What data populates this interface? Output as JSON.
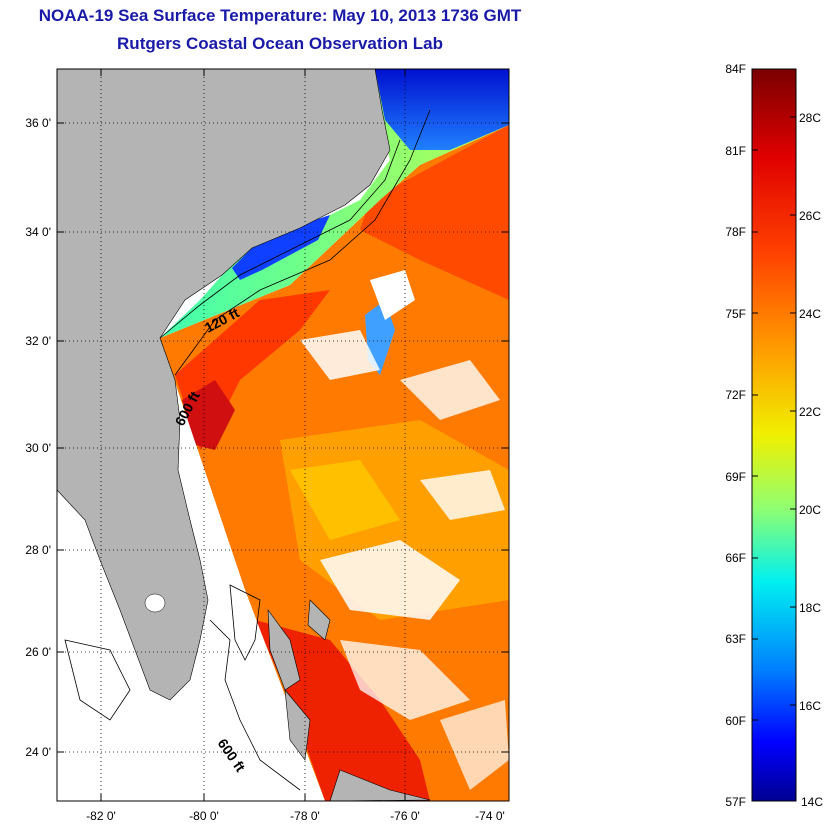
{
  "title": "NOAA-19 Sea Surface Temperature:  May 10, 2013 1736 GMT",
  "subtitle": "Rutgers Coastal Ocean Observation Lab",
  "map": {
    "lon_ticks": [
      "-82 0'",
      "-80 0'",
      "-78 0'",
      "-76 0'",
      "-74 0'"
    ],
    "lat_ticks": [
      "36 0'",
      "34 0'",
      "32 0'",
      "30 0'",
      "28 0'",
      "26 0'",
      "24 0'"
    ],
    "contour_labels": [
      "120 ft",
      "600 ft",
      "600 ft"
    ],
    "colors": {
      "land": "#b4b4b4",
      "no_data": "#ffffff"
    }
  },
  "colorbar": {
    "fahrenheit_labels": [
      "84F",
      "81F",
      "78F",
      "75F",
      "72F",
      "69F",
      "66F",
      "63F",
      "60F",
      "57F"
    ],
    "celsius_labels": [
      "28C",
      "26C",
      "24C",
      "22C",
      "20C",
      "18C",
      "16C",
      "14C"
    ],
    "colors": [
      "#800000",
      "#ff0000",
      "#ff8000",
      "#ffff00",
      "#80ff80",
      "#00ffff",
      "#0080ff",
      "#0000ff",
      "#000080"
    ]
  }
}
